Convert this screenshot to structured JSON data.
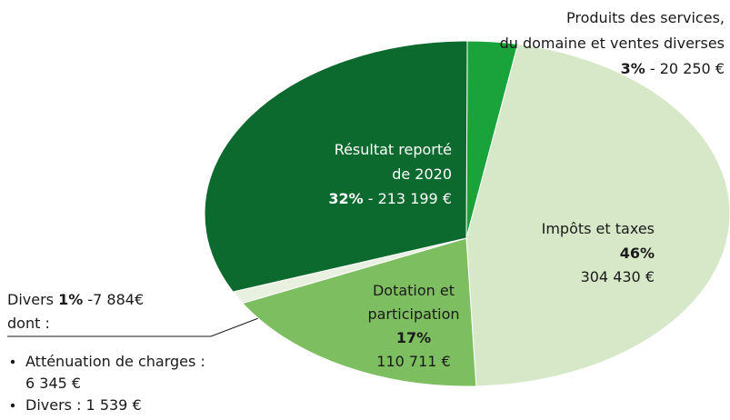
{
  "chart_data": {
    "type": "pie",
    "labels": [
      [
        "Produits des services,",
        "du domaine et ventes diverses"
      ],
      [
        "Impôts et taxes"
      ],
      [
        "Dotation et",
        "participation"
      ],
      [
        "Divers"
      ],
      [
        "Résultat reporté",
        "de 2020"
      ]
    ],
    "values": [
      20250,
      304430,
      110711,
      7884,
      213199
    ],
    "value_labels": [
      "- 20 250 €",
      "304 430 €",
      "110 711 €",
      "-7 884€",
      "- 213 199 €"
    ],
    "percents": [
      3,
      46,
      17,
      1,
      32
    ],
    "percent_labels": [
      "3%",
      "46%",
      "17%",
      "1%",
      "32%"
    ],
    "colors": [
      "#1aa33a",
      "#d6e8c8",
      "#7dbf60",
      "#e8f1df",
      "#0d6a2e"
    ],
    "divers_intro": "dont :",
    "divers_items": [
      [
        "Atténuation de charges :",
        "6 345 €"
      ],
      [
        "Divers : 1 539 €"
      ]
    ]
  }
}
